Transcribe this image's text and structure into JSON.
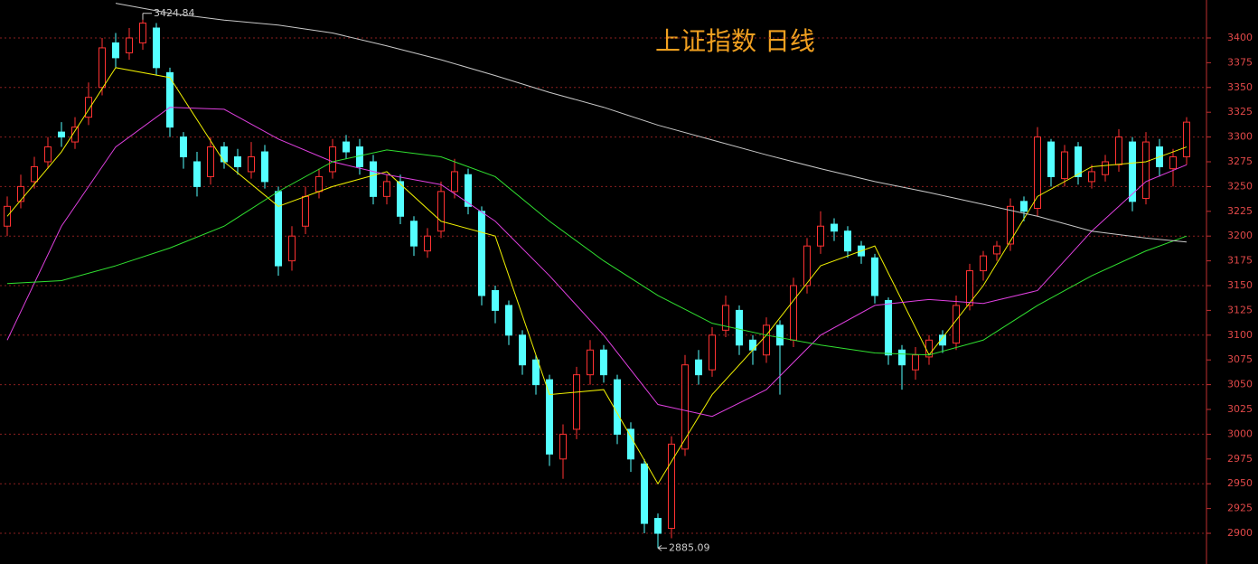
{
  "chart_data": {
    "type": "candlestick",
    "title": "上证指数 日线",
    "open": [
      3210,
      3235,
      3255,
      3275,
      3305,
      3295,
      3320,
      3350,
      3395,
      3385,
      3395,
      3410,
      3365,
      3300,
      3275,
      3260,
      3290,
      3280,
      3265,
      3285,
      3245,
      3175,
      3210,
      3245,
      3265,
      3295,
      3290,
      3275,
      3240,
      3255,
      3215,
      3185,
      3205,
      3245,
      3262,
      3225,
      3145,
      3130,
      3100,
      3075,
      3055,
      2975,
      3005,
      3060,
      3085,
      3055,
      3005,
      2970,
      2915,
      2905,
      2985,
      3075,
      3065,
      3105,
      3125,
      3095,
      3080,
      3110,
      3095,
      3150,
      3190,
      3212,
      3205,
      3190,
      3178,
      3135,
      3085,
      3065,
      3078,
      3100,
      3092,
      3130,
      3165,
      3182,
      3192,
      3235,
      3228,
      3295,
      3258,
      3290,
      3255,
      3262,
      3272,
      3295,
      3238,
      3290,
      3268,
      3280
    ],
    "high": [
      3240,
      3262,
      3280,
      3300,
      3315,
      3320,
      3355,
      3400,
      3405,
      3410,
      3424.84,
      3415,
      3370,
      3305,
      3285,
      3300,
      3295,
      3288,
      3295,
      3292,
      3250,
      3210,
      3250,
      3268,
      3298,
      3302,
      3298,
      3282,
      3262,
      3262,
      3220,
      3208,
      3255,
      3278,
      3268,
      3230,
      3150,
      3135,
      3105,
      3080,
      3060,
      3010,
      3068,
      3095,
      3090,
      3060,
      3012,
      2975,
      2920,
      2998,
      3080,
      3085,
      3108,
      3140,
      3130,
      3100,
      3118,
      3115,
      3158,
      3198,
      3225,
      3218,
      3210,
      3195,
      3182,
      3138,
      3090,
      3088,
      3100,
      3105,
      3140,
      3172,
      3185,
      3195,
      3238,
      3240,
      3310,
      3298,
      3292,
      3295,
      3272,
      3282,
      3308,
      3300,
      3305,
      3298,
      3288,
      3320
    ],
    "low": [
      3200,
      3228,
      3248,
      3268,
      3290,
      3288,
      3312,
      3342,
      3370,
      3378,
      3388,
      3362,
      3300,
      3268,
      3240,
      3252,
      3268,
      3262,
      3258,
      3248,
      3160,
      3165,
      3202,
      3238,
      3258,
      3278,
      3262,
      3232,
      3232,
      3212,
      3180,
      3178,
      3198,
      3238,
      3222,
      3130,
      3112,
      3090,
      3060,
      3040,
      2968,
      2955,
      2995,
      3050,
      3052,
      2990,
      2962,
      2900,
      2885.09,
      2895,
      2978,
      3050,
      3058,
      3098,
      3080,
      3070,
      3072,
      3040,
      3088,
      3142,
      3182,
      3195,
      3178,
      3172,
      3132,
      3070,
      3045,
      3055,
      3070,
      3082,
      3085,
      3125,
      3155,
      3175,
      3185,
      3215,
      3220,
      3250,
      3250,
      3252,
      3248,
      3255,
      3265,
      3225,
      3232,
      3260,
      3250,
      3272
    ],
    "close": [
      3230,
      3250,
      3270,
      3290,
      3300,
      3310,
      3340,
      3390,
      3380,
      3400,
      3415,
      3370,
      3310,
      3280,
      3250,
      3290,
      3275,
      3270,
      3280,
      3255,
      3170,
      3200,
      3240,
      3260,
      3290,
      3285,
      3270,
      3240,
      3255,
      3220,
      3190,
      3200,
      3245,
      3265,
      3230,
      3140,
      3125,
      3100,
      3070,
      3050,
      2980,
      3000,
      3060,
      3085,
      3060,
      3000,
      2975,
      2910,
      2900,
      2990,
      3070,
      3060,
      3100,
      3130,
      3090,
      3085,
      3110,
      3090,
      3150,
      3190,
      3210,
      3205,
      3185,
      3180,
      3140,
      3080,
      3070,
      3080,
      3095,
      3090,
      3130,
      3165,
      3180,
      3190,
      3230,
      3225,
      3300,
      3260,
      3285,
      3260,
      3265,
      3275,
      3300,
      3235,
      3295,
      3270,
      3280,
      3315
    ],
    "up_color": "#ff3232",
    "down_color": "#54ffff",
    "ma_x": [
      0,
      4,
      8,
      12,
      16,
      20,
      24,
      28,
      32,
      36,
      40,
      44,
      48,
      52,
      56,
      60,
      64,
      68,
      72,
      76,
      80,
      84,
      87
    ],
    "lines": [
      {
        "color": "#f0f000",
        "values": [
          3220,
          3285,
          3370,
          3360,
          3275,
          3230,
          3250,
          3265,
          3215,
          3200,
          3040,
          3045,
          2950,
          3040,
          3100,
          3170,
          3190,
          3080,
          3150,
          3240,
          3270,
          3275,
          3290
        ]
      },
      {
        "color": "#e040e0",
        "values": [
          3095,
          3210,
          3290,
          3330,
          3328,
          3298,
          3275,
          3262,
          3252,
          3215,
          3160,
          3100,
          3030,
          3018,
          3045,
          3100,
          3130,
          3136,
          3132,
          3145,
          3205,
          3255,
          3272
        ]
      },
      {
        "color": "#30e030",
        "values": [
          3152,
          3155,
          3170,
          3188,
          3210,
          3245,
          3275,
          3287,
          3280,
          3260,
          3215,
          3175,
          3140,
          3112,
          3100,
          3090,
          3082,
          3080,
          3095,
          3130,
          3160,
          3185,
          3200
        ]
      },
      {
        "color": "#c8c8c8",
        "values": [
          null,
          null,
          3435,
          3425,
          3418,
          3413,
          3405,
          3392,
          3378,
          3362,
          3345,
          3330,
          3312,
          3297,
          3282,
          3268,
          3255,
          3244,
          3232,
          3220,
          3205,
          3198,
          3194
        ]
      }
    ],
    "ylim": [
      2869,
      3438.3
    ],
    "yticks": [
      2900,
      2925,
      2950,
      2975,
      3000,
      3025,
      3050,
      3075,
      3100,
      3125,
      3150,
      3175,
      3200,
      3225,
      3250,
      3275,
      3300,
      3325,
      3350,
      3375,
      3400
    ],
    "grid": true
  }
}
